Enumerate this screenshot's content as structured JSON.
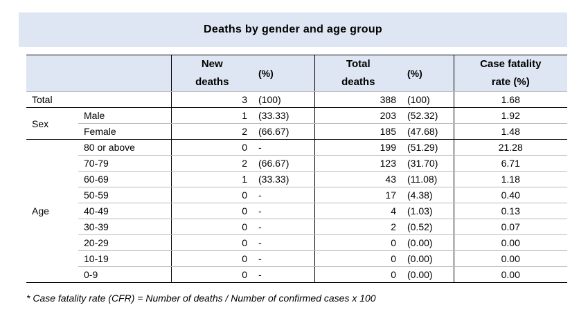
{
  "title": "Deaths by gender and age group",
  "headers": {
    "new_deaths": [
      "New",
      "deaths"
    ],
    "pct1": "(%)",
    "total_deaths": [
      "Total",
      "deaths"
    ],
    "pct2": "(%)",
    "cfr": [
      "Case fatality",
      "rate (%)"
    ]
  },
  "total_row": {
    "label": "Total",
    "new": "3",
    "new_pct": "(100)",
    "total": "388",
    "total_pct": "(100)",
    "cfr": "1.68"
  },
  "sex_group": {
    "label": "Sex",
    "rows": [
      {
        "label": "Male",
        "new": "1",
        "new_pct": "(33.33)",
        "total": "203",
        "total_pct": "(52.32)",
        "cfr": "1.92"
      },
      {
        "label": "Female",
        "new": "2",
        "new_pct": "(66.67)",
        "total": "185",
        "total_pct": "(47.68)",
        "cfr": "1.48"
      }
    ]
  },
  "age_group": {
    "label": "Age",
    "rows": [
      {
        "label": "80 or above",
        "new": "0",
        "new_pct": "-",
        "total": "199",
        "total_pct": "(51.29)",
        "cfr": "21.28"
      },
      {
        "label": "70-79",
        "new": "2",
        "new_pct": "(66.67)",
        "total": "123",
        "total_pct": "(31.70)",
        "cfr": "6.71"
      },
      {
        "label": "60-69",
        "new": "1",
        "new_pct": "(33.33)",
        "total": "43",
        "total_pct": "(11.08)",
        "cfr": "1.18"
      },
      {
        "label": "50-59",
        "new": "0",
        "new_pct": "-",
        "total": "17",
        "total_pct": "(4.38)",
        "cfr": "0.40"
      },
      {
        "label": "40-49",
        "new": "0",
        "new_pct": "-",
        "total": "4",
        "total_pct": "(1.03)",
        "cfr": "0.13"
      },
      {
        "label": "30-39",
        "new": "0",
        "new_pct": "-",
        "total": "2",
        "total_pct": "(0.52)",
        "cfr": "0.07"
      },
      {
        "label": "20-29",
        "new": "0",
        "new_pct": "-",
        "total": "0",
        "total_pct": "(0.00)",
        "cfr": "0.00"
      },
      {
        "label": "10-19",
        "new": "0",
        "new_pct": "-",
        "total": "0",
        "total_pct": "(0.00)",
        "cfr": "0.00"
      },
      {
        "label": "0-9",
        "new": "0",
        "new_pct": "-",
        "total": "0",
        "total_pct": "(0.00)",
        "cfr": "0.00"
      }
    ]
  },
  "footnote": "* Case fatality rate (CFR) = Number of deaths / Number of confirmed cases x 100",
  "colors": {
    "header_bg": "#dde6f2"
  }
}
